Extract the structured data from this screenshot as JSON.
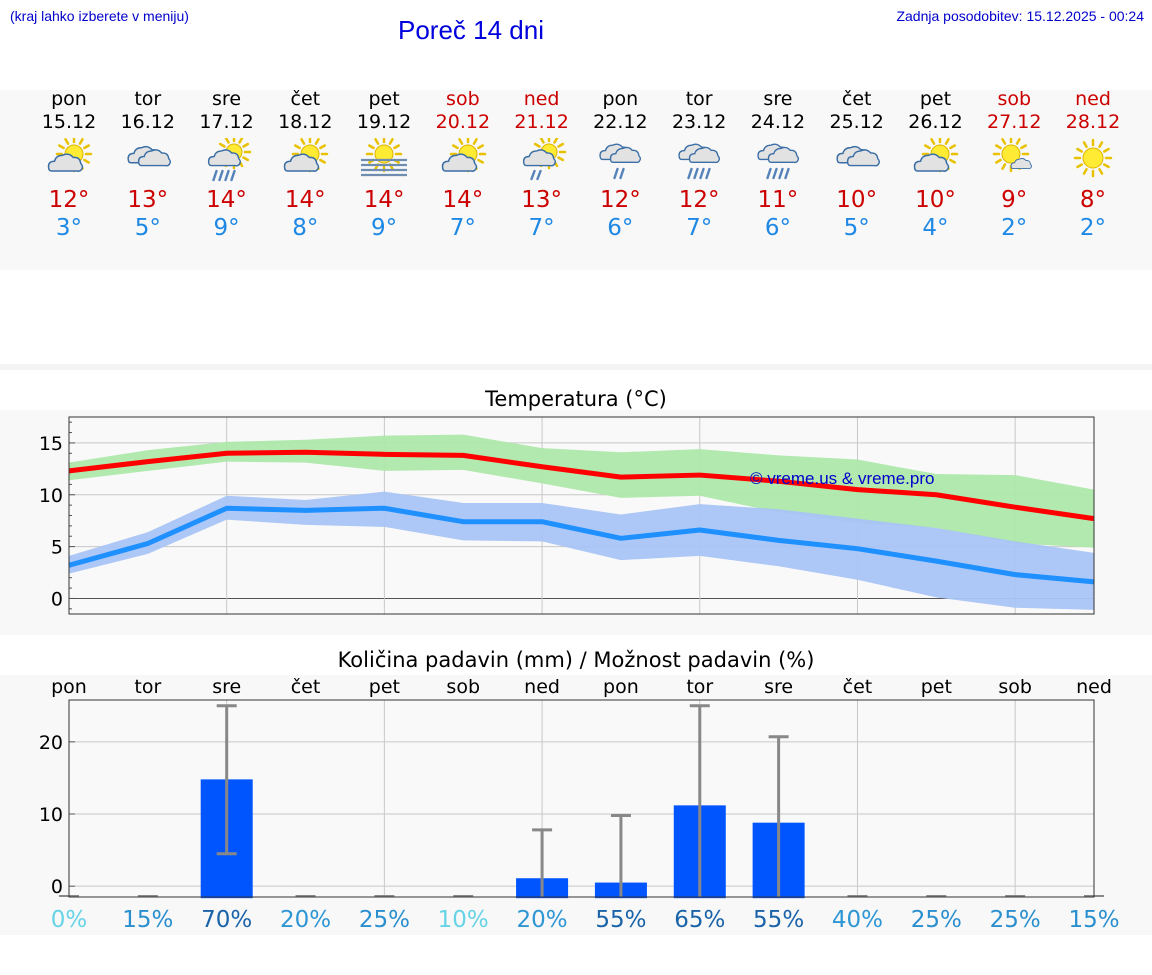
{
  "header": {
    "note_left": "(kraj lahko izberete v meniju)",
    "title": "Poreč 14 dni",
    "note_right": "Zadnja posodobitev: 15.12.2025 - 00:24"
  },
  "days": [
    {
      "name": "pon",
      "date": "15.12",
      "weekend": false,
      "icon": "sun-cloud-icon",
      "tmax": "12°",
      "tmin": "3°"
    },
    {
      "name": "tor",
      "date": "16.12",
      "weekend": false,
      "icon": "cloudy-icon",
      "tmax": "13°",
      "tmin": "5°"
    },
    {
      "name": "sre",
      "date": "17.12",
      "weekend": false,
      "icon": "sun-cloud-rain-icon",
      "tmax": "14°",
      "tmin": "9°"
    },
    {
      "name": "čet",
      "date": "18.12",
      "weekend": false,
      "icon": "sun-cloud-icon",
      "tmax": "14°",
      "tmin": "8°"
    },
    {
      "name": "pet",
      "date": "19.12",
      "weekend": false,
      "icon": "sun-fog-icon",
      "tmax": "14°",
      "tmin": "9°"
    },
    {
      "name": "sob",
      "date": "20.12",
      "weekend": true,
      "icon": "sun-cloud-icon",
      "tmax": "14°",
      "tmin": "7°"
    },
    {
      "name": "ned",
      "date": "21.12",
      "weekend": true,
      "icon": "sun-cloud-light-rain-icon",
      "tmax": "13°",
      "tmin": "7°"
    },
    {
      "name": "pon",
      "date": "22.12",
      "weekend": false,
      "icon": "cloud-light-rain-icon",
      "tmax": "12°",
      "tmin": "6°"
    },
    {
      "name": "tor",
      "date": "23.12",
      "weekend": false,
      "icon": "cloud-rain-icon",
      "tmax": "12°",
      "tmin": "7°"
    },
    {
      "name": "sre",
      "date": "24.12",
      "weekend": false,
      "icon": "cloud-rain-icon",
      "tmax": "11°",
      "tmin": "6°"
    },
    {
      "name": "čet",
      "date": "25.12",
      "weekend": false,
      "icon": "cloudy-icon",
      "tmax": "10°",
      "tmin": "5°"
    },
    {
      "name": "pet",
      "date": "26.12",
      "weekend": false,
      "icon": "sun-cloud-icon",
      "tmax": "10°",
      "tmin": "4°"
    },
    {
      "name": "sob",
      "date": "27.12",
      "weekend": true,
      "icon": "sun-small-cloud-icon",
      "tmax": "9°",
      "tmin": "2°"
    },
    {
      "name": "ned",
      "date": "28.12",
      "weekend": true,
      "icon": "sun-icon",
      "tmax": "8°",
      "tmin": "2°"
    }
  ],
  "colors": {
    "tmax_line": "#ff0000",
    "tmax_band": "#aee8aa",
    "tmin_line": "#1e90ff",
    "tmin_band": "#a9c4f5",
    "overlap_band": "#86c29a",
    "bar": "#0055ff",
    "errorbar": "#888888",
    "grid": "#c8c8c8",
    "watermark": "#0000cc"
  },
  "chart_data": [
    {
      "type": "line",
      "title": "Temperatura (°C)",
      "ylim": [
        -1.5,
        17.5
      ],
      "yticks": [
        0,
        5,
        10,
        15
      ],
      "x": [
        0,
        1,
        2,
        3,
        4,
        5,
        6,
        7,
        8,
        9,
        10,
        11,
        12,
        13
      ],
      "watermark": "© vreme.us & vreme.pro",
      "series": [
        {
          "name": "max",
          "values": [
            12.3,
            13.2,
            14.0,
            14.1,
            13.9,
            13.8,
            12.7,
            11.7,
            11.9,
            11.3,
            10.5,
            10.0,
            8.8,
            7.7
          ]
        },
        {
          "name": "max_low",
          "values": [
            11.4,
            12.3,
            13.2,
            13.1,
            12.3,
            12.4,
            11.1,
            9.7,
            9.9,
            8.3,
            7.3,
            6.8,
            5.3,
            4.9
          ]
        },
        {
          "name": "max_high",
          "values": [
            13.1,
            14.3,
            15.1,
            15.3,
            15.7,
            15.8,
            14.5,
            14.1,
            14.4,
            13.8,
            13.4,
            12.0,
            11.9,
            10.5
          ]
        },
        {
          "name": "min",
          "values": [
            3.2,
            5.3,
            8.7,
            8.5,
            8.7,
            7.4,
            7.4,
            5.8,
            6.6,
            5.6,
            4.8,
            3.6,
            2.3,
            1.6
          ]
        },
        {
          "name": "min_low",
          "values": [
            2.4,
            4.3,
            7.6,
            7.1,
            6.9,
            5.6,
            5.5,
            3.7,
            4.1,
            3.1,
            1.8,
            0.1,
            -0.9,
            -1.1
          ]
        },
        {
          "name": "min_high",
          "values": [
            4.1,
            6.4,
            9.9,
            9.5,
            10.3,
            9.2,
            9.2,
            8.1,
            9.1,
            8.6,
            7.7,
            6.8,
            5.5,
            4.4
          ]
        }
      ]
    },
    {
      "type": "bar",
      "title": "Količina padavin (mm) / Možnost padavin (%)",
      "categories": [
        "pon",
        "tor",
        "sre",
        "čet",
        "pet",
        "sob",
        "ned",
        "pon",
        "tor",
        "sre",
        "čet",
        "pet",
        "sob",
        "ned"
      ],
      "values": [
        0,
        0,
        14.8,
        0,
        0,
        0,
        1.1,
        0.5,
        11.2,
        8.8,
        0,
        0,
        0,
        0
      ],
      "err_low": [
        0,
        0,
        4.5,
        0,
        0,
        0,
        0,
        0,
        0,
        0,
        0,
        0,
        0,
        0
      ],
      "err_high": [
        0,
        0,
        25.0,
        0,
        0,
        0,
        7.8,
        9.8,
        25.0,
        20.7,
        0,
        0,
        0,
        0
      ],
      "ylim": [
        -1.5,
        25.8
      ],
      "yticks": [
        0,
        10,
        20
      ],
      "probabilities": [
        "0%",
        "15%",
        "70%",
        "20%",
        "25%",
        "10%",
        "20%",
        "55%",
        "65%",
        "55%",
        "40%",
        "25%",
        "25%",
        "15%"
      ],
      "prob_colors": [
        "#66d4e6",
        "#2a8fcf",
        "#1a63a8",
        "#2f96d4",
        "#2a8fcf",
        "#66d4e6",
        "#2f96d4",
        "#1a63a8",
        "#1a63a8",
        "#1a63a8",
        "#2f96d4",
        "#2a8fcf",
        "#2a8fcf",
        "#2a8fcf"
      ]
    }
  ]
}
